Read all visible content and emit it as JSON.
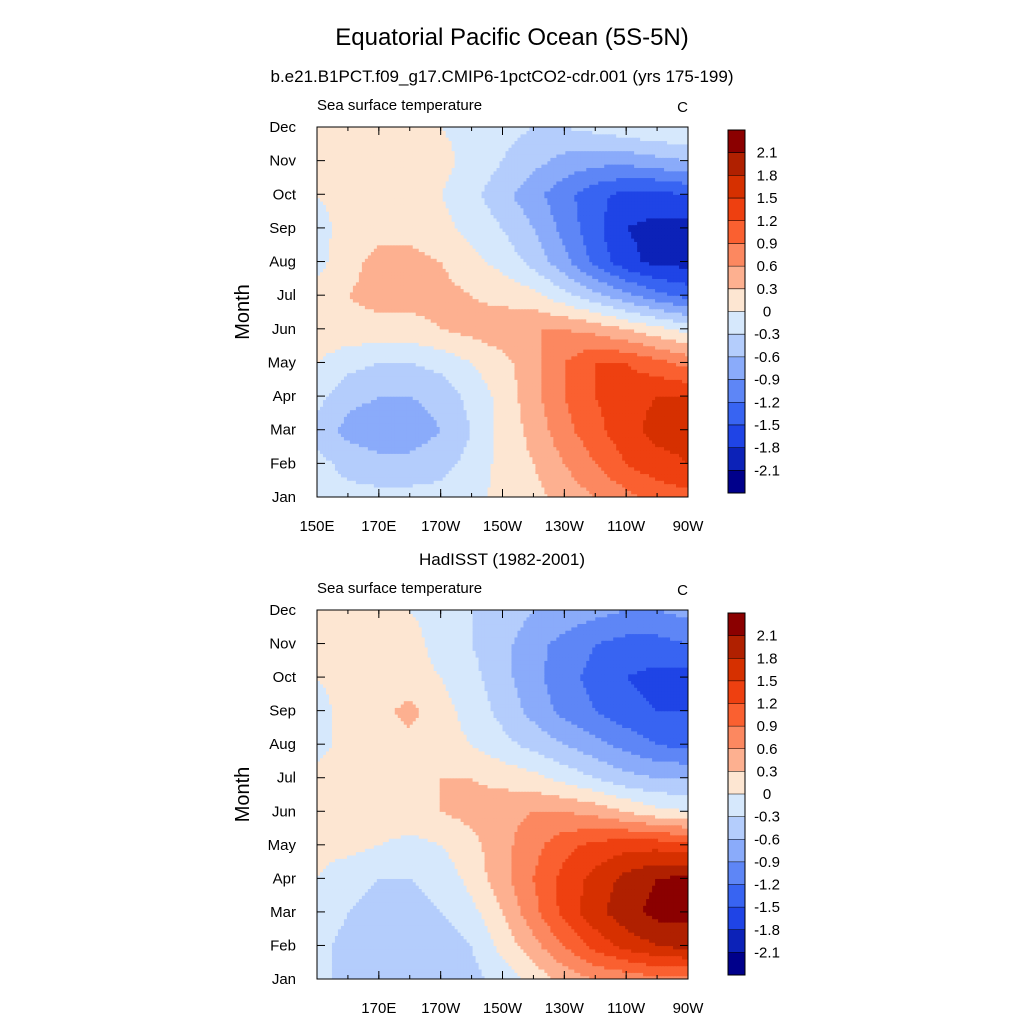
{
  "title": "Equatorial Pacific Ocean (5S-5N)",
  "chart_data": [
    {
      "type": "heatmap",
      "title": "b.e21.B1PCT.f09_g17.CMIP6-1pctCO2-cdr.001 (yrs 175-199)",
      "left_string": "Sea surface temperature",
      "right_string": "C",
      "ylabel": "Month",
      "x_tick_labels": [
        "150E",
        "170E",
        "170W",
        "150W",
        "130W",
        "110W",
        "90W"
      ],
      "x_ticks_lon": [
        150,
        170,
        190,
        210,
        230,
        250,
        270
      ],
      "xlim": [
        150,
        270
      ],
      "y_tick_labels": [
        "Jan",
        "Feb",
        "Mar",
        "Apr",
        "May",
        "Jun",
        "Jul",
        "Aug",
        "Sep",
        "Oct",
        "Nov",
        "Dec"
      ],
      "ylim": [
        1,
        12
      ],
      "lon": [
        150,
        160,
        170,
        180,
        190,
        200,
        210,
        220,
        230,
        240,
        250,
        260,
        270
      ],
      "months": [
        "Jan",
        "Feb",
        "Mar",
        "Apr",
        "May",
        "Jun",
        "Jul",
        "Aug",
        "Sep",
        "Oct",
        "Nov",
        "Dec"
      ],
      "values": [
        [
          -0.1,
          -0.2,
          -0.2,
          -0.2,
          -0.2,
          -0.1,
          0.1,
          0.2,
          0.4,
          0.6,
          0.8,
          1.0,
          1.1
        ],
        [
          -0.2,
          -0.4,
          -0.5,
          -0.5,
          -0.4,
          -0.2,
          0.1,
          0.3,
          0.6,
          0.9,
          1.2,
          1.4,
          1.5
        ],
        [
          -0.4,
          -0.7,
          -0.8,
          -0.8,
          -0.6,
          -0.3,
          0.1,
          0.4,
          0.8,
          1.1,
          1.4,
          1.6,
          1.6
        ],
        [
          -0.2,
          -0.5,
          -0.6,
          -0.6,
          -0.5,
          -0.2,
          0.1,
          0.5,
          0.9,
          1.2,
          1.4,
          1.5,
          1.5
        ],
        [
          0.0,
          -0.2,
          -0.3,
          -0.3,
          -0.2,
          0.0,
          0.2,
          0.5,
          0.9,
          1.2,
          1.2,
          1.0,
          0.8
        ],
        [
          0.2,
          0.2,
          0.2,
          0.2,
          0.3,
          0.4,
          0.5,
          0.6,
          0.6,
          0.5,
          0.3,
          0.1,
          -0.1
        ],
        [
          0.1,
          0.3,
          0.4,
          0.4,
          0.4,
          0.3,
          0.2,
          0.1,
          -0.2,
          -0.5,
          -0.8,
          -1.1,
          -1.3
        ],
        [
          -0.1,
          0.2,
          0.4,
          0.4,
          0.3,
          0.1,
          -0.1,
          -0.4,
          -0.8,
          -1.3,
          -1.7,
          -1.9,
          -1.9
        ],
        [
          -0.1,
          0.1,
          0.2,
          0.2,
          0.1,
          -0.1,
          -0.3,
          -0.6,
          -1.0,
          -1.4,
          -1.8,
          -1.9,
          -1.9
        ],
        [
          0.0,
          0.1,
          0.1,
          0.1,
          0.0,
          -0.2,
          -0.5,
          -0.8,
          -1.1,
          -1.4,
          -1.6,
          -1.6,
          -1.5
        ],
        [
          0.0,
          0.1,
          0.2,
          0.2,
          0.1,
          -0.1,
          -0.3,
          -0.5,
          -0.7,
          -0.8,
          -0.8,
          -0.7,
          -0.6
        ],
        [
          0.0,
          0.1,
          0.1,
          0.1,
          0.0,
          -0.1,
          -0.2,
          -0.3,
          -0.3,
          -0.2,
          -0.1,
          0.0,
          0.0
        ]
      ]
    },
    {
      "type": "heatmap",
      "title": "HadISST (1982-2001)",
      "left_string": "Sea surface temperature",
      "right_string": "C",
      "ylabel": "Month",
      "x_tick_labels": [
        "170E",
        "170W",
        "150W",
        "130W",
        "110W",
        "90W"
      ],
      "x_ticks_lon": [
        170,
        190,
        210,
        230,
        250,
        270
      ],
      "xlim": [
        150,
        270
      ],
      "y_tick_labels": [
        "Jan",
        "Feb",
        "Mar",
        "Apr",
        "May",
        "Jun",
        "Jul",
        "Aug",
        "Sep",
        "Oct",
        "Nov",
        "Dec"
      ],
      "ylim": [
        1,
        12
      ],
      "lon": [
        150,
        160,
        170,
        180,
        190,
        200,
        210,
        220,
        230,
        240,
        250,
        260,
        270
      ],
      "months": [
        "Jan",
        "Feb",
        "Mar",
        "Apr",
        "May",
        "Jun",
        "Jul",
        "Aug",
        "Sep",
        "Oct",
        "Nov",
        "Dec"
      ],
      "values": [
        [
          -0.2,
          -0.4,
          -0.5,
          -0.5,
          -0.5,
          -0.4,
          -0.2,
          0.1,
          0.4,
          0.6,
          0.7,
          0.8,
          0.8
        ],
        [
          -0.2,
          -0.4,
          -0.5,
          -0.5,
          -0.5,
          -0.3,
          0.1,
          0.5,
          0.9,
          1.3,
          1.6,
          1.8,
          1.9
        ],
        [
          -0.1,
          -0.3,
          -0.4,
          -0.4,
          -0.3,
          -0.1,
          0.3,
          0.8,
          1.3,
          1.7,
          2.0,
          2.2,
          2.2
        ],
        [
          0.0,
          -0.2,
          -0.3,
          -0.3,
          -0.2,
          0.1,
          0.5,
          0.9,
          1.3,
          1.6,
          1.9,
          2.1,
          2.2
        ],
        [
          0.1,
          0.1,
          0.0,
          -0.1,
          0.0,
          0.2,
          0.5,
          0.8,
          1.1,
          1.3,
          1.4,
          1.4,
          1.3
        ],
        [
          0.2,
          0.2,
          0.2,
          0.2,
          0.3,
          0.4,
          0.5,
          0.6,
          0.6,
          0.5,
          0.3,
          0.1,
          0.0
        ],
        [
          0.1,
          0.2,
          0.2,
          0.3,
          0.3,
          0.3,
          0.2,
          0.1,
          -0.1,
          -0.3,
          -0.5,
          -0.6,
          -0.6
        ],
        [
          -0.1,
          0.1,
          0.2,
          0.2,
          0.1,
          0.0,
          -0.2,
          -0.4,
          -0.6,
          -0.8,
          -1.0,
          -1.2,
          -1.3
        ],
        [
          -0.1,
          0.1,
          0.2,
          0.4,
          0.1,
          -0.1,
          -0.4,
          -0.7,
          -1.0,
          -1.2,
          -1.4,
          -1.5,
          -1.5
        ],
        [
          0.0,
          0.1,
          0.1,
          0.1,
          0.0,
          -0.2,
          -0.5,
          -0.8,
          -1.1,
          -1.3,
          -1.5,
          -1.6,
          -1.6
        ],
        [
          0.0,
          0.1,
          0.1,
          0.1,
          -0.1,
          -0.3,
          -0.5,
          -0.8,
          -1.0,
          -1.2,
          -1.3,
          -1.3,
          -1.2
        ],
        [
          0.0,
          0.1,
          0.1,
          0.0,
          -0.1,
          -0.3,
          -0.4,
          -0.6,
          -0.7,
          -0.8,
          -0.9,
          -0.9,
          -0.8
        ]
      ]
    }
  ],
  "colorbar": {
    "labels": [
      "2.1",
      "1.8",
      "1.5",
      "1.2",
      "0.9",
      "0.6",
      "0.3",
      "0",
      "-0.3",
      "-0.6",
      "-0.9",
      "-1.2",
      "-1.5",
      "-1.8",
      "-2.1"
    ],
    "levels": [
      -2.1,
      -1.8,
      -1.5,
      -1.2,
      -0.9,
      -0.6,
      -0.3,
      0,
      0.3,
      0.6,
      0.9,
      1.2,
      1.5,
      1.8,
      2.1
    ],
    "colors_high_to_low": [
      "#8b0000",
      "#b02000",
      "#d63000",
      "#ee4010",
      "#fa6030",
      "#fc8860",
      "#fdb090",
      "#fde6d2",
      "#d6e8fc",
      "#b4cdfc",
      "#8aabfa",
      "#5e86f6",
      "#3864f2",
      "#1f44e6",
      "#0c22b8",
      "#00008b"
    ]
  }
}
